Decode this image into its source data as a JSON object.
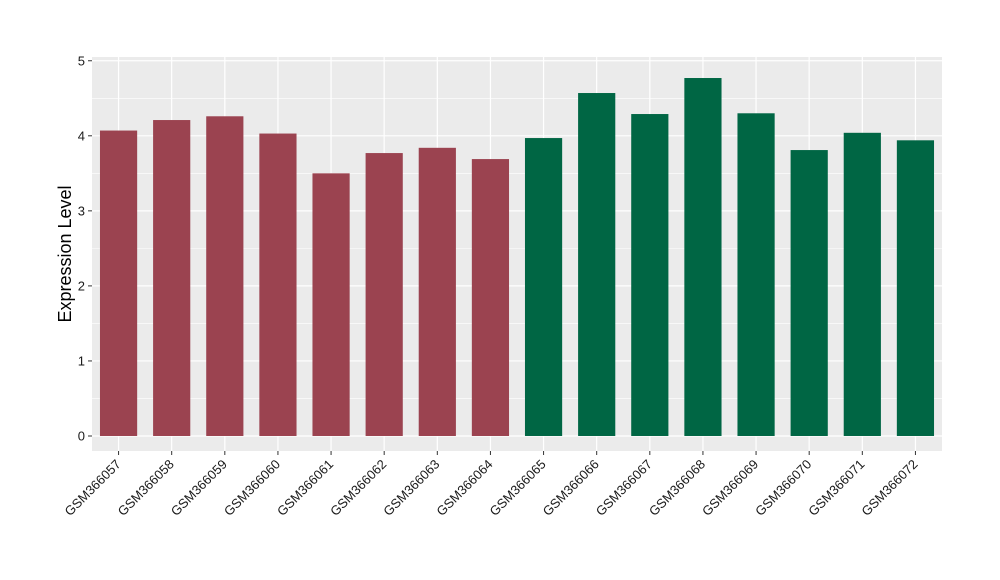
{
  "chart_data": {
    "type": "bar",
    "title": "",
    "xlabel": "",
    "ylabel": "Expression Level",
    "ylim": [
      -0.2,
      5.05
    ],
    "yticks": [
      0,
      1,
      2,
      3,
      4,
      5
    ],
    "grid": true,
    "legend": "none",
    "categories": [
      "GSM366057",
      "GSM366058",
      "GSM366059",
      "GSM366060",
      "GSM366061",
      "GSM366062",
      "GSM366063",
      "GSM366064",
      "GSM366065",
      "GSM366066",
      "GSM366067",
      "GSM366068",
      "GSM366069",
      "GSM366070",
      "GSM366071",
      "GSM366072"
    ],
    "values": [
      4.07,
      4.21,
      4.26,
      4.03,
      3.5,
      3.77,
      3.84,
      3.69,
      3.97,
      4.57,
      4.29,
      4.77,
      4.3,
      3.81,
      4.04,
      3.94
    ],
    "bar_colors": [
      "#9b4350",
      "#9b4350",
      "#9b4350",
      "#9b4350",
      "#9b4350",
      "#9b4350",
      "#9b4350",
      "#9b4350",
      "#006644",
      "#006644",
      "#006644",
      "#006644",
      "#006644",
      "#006644",
      "#006644",
      "#006644"
    ],
    "panel_background": "#ebebeb",
    "grid_color": "#ffffff"
  }
}
